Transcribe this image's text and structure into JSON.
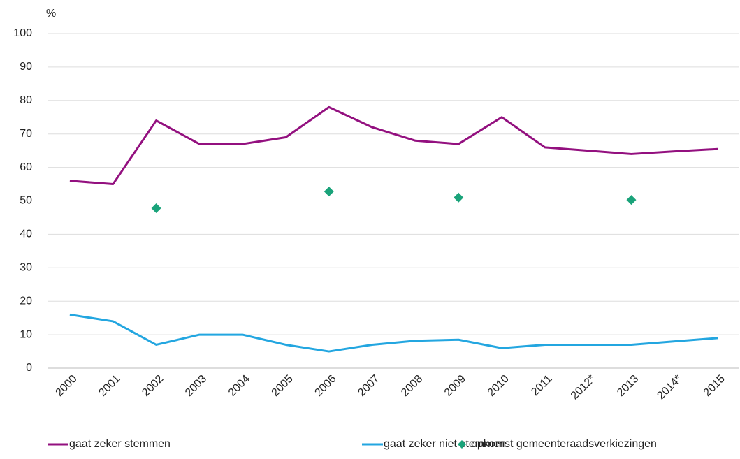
{
  "chart_data": {
    "type": "line",
    "y_label": "%",
    "categories": [
      "2000",
      "2001",
      "2002",
      "2003",
      "2004",
      "2005",
      "2006",
      "2007",
      "2008",
      "2009",
      "2010",
      "2011",
      "2012*",
      "2013",
      "2014*",
      "2015"
    ],
    "series": [
      {
        "name": "gaat zeker stemmen",
        "color": "#93107f",
        "style": "line",
        "values": [
          56,
          55,
          74,
          67,
          67,
          69,
          78,
          72,
          68,
          67,
          75,
          66,
          65,
          64,
          64.8,
          65.5
        ]
      },
      {
        "name": "gaat zeker niet stemmen",
        "color": "#23a6e0",
        "style": "line",
        "values": [
          16,
          14,
          7,
          10,
          10,
          7,
          5,
          7,
          8.2,
          8.5,
          6,
          7,
          7,
          7,
          8,
          9
        ]
      },
      {
        "name": "opkomst gemeenteraadsverkiezingen",
        "color": "#1aa37a",
        "style": "diamond",
        "values": [
          null,
          null,
          47.8,
          null,
          null,
          null,
          52.8,
          null,
          null,
          51,
          null,
          null,
          null,
          50.3,
          null,
          null
        ]
      }
    ],
    "ylim": [
      0,
      100
    ],
    "yticks": [
      0,
      10,
      20,
      30,
      40,
      50,
      60,
      70,
      80,
      90,
      100
    ],
    "grid": true,
    "legend": "bottom"
  }
}
